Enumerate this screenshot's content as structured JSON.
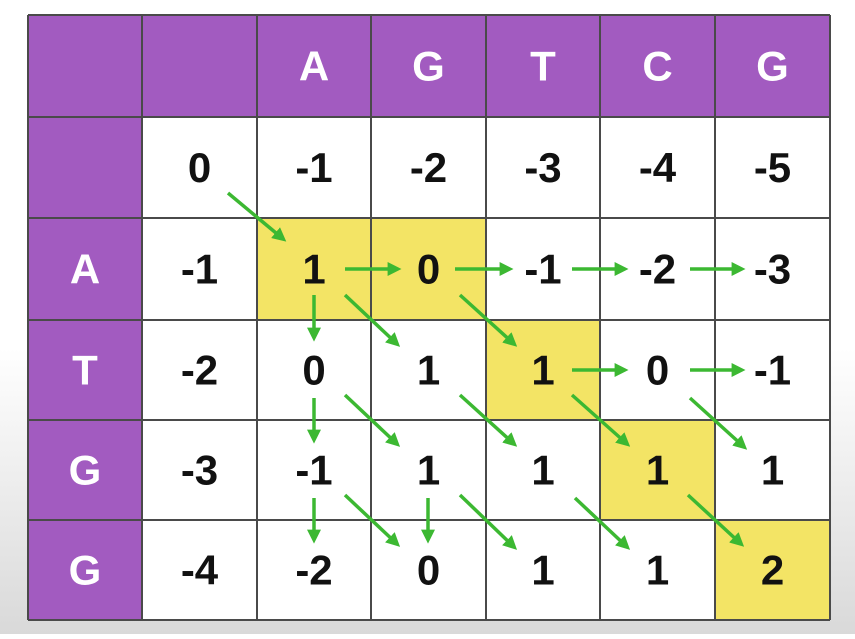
{
  "table": {
    "columns": [
      "A",
      "G",
      "T",
      "C",
      "G"
    ],
    "row_labels": [
      "A",
      "T",
      "G",
      "G"
    ],
    "rows": [
      [
        0,
        -1,
        -2,
        -3,
        -4,
        -5
      ],
      [
        -1,
        1,
        0,
        -1,
        -2,
        -3
      ],
      [
        -2,
        0,
        1,
        1,
        0,
        -1
      ],
      [
        -3,
        -1,
        1,
        1,
        1,
        1
      ],
      [
        -4,
        -2,
        0,
        1,
        1,
        2
      ]
    ]
  }
}
